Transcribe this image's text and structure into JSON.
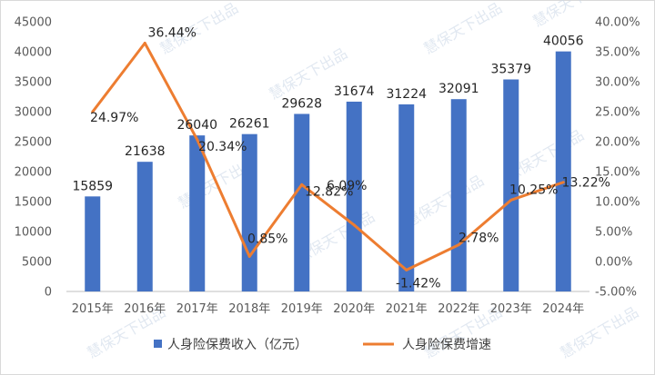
{
  "chart_data": {
    "type": "bar+line",
    "categories": [
      "2015年",
      "2016年",
      "2017年",
      "2018年",
      "2019年",
      "2020年",
      "2021年",
      "2022年",
      "2023年",
      "2024年"
    ],
    "series": [
      {
        "name": "人身险保费收入（亿元）",
        "type": "bar",
        "axis": "left",
        "color": "#4472C4",
        "values": [
          15859,
          21638,
          26040,
          26261,
          29628,
          31674,
          31224,
          32091,
          35379,
          40056
        ],
        "labels": [
          "15859",
          "21638",
          "26040",
          "26261",
          "29628",
          "31674",
          "31224",
          "32091",
          "35379",
          "40056"
        ]
      },
      {
        "name": "人身险保费增速",
        "type": "line",
        "axis": "right",
        "color": "#ED7D31",
        "values": [
          24.97,
          36.44,
          20.34,
          0.85,
          12.82,
          6.09,
          -1.42,
          2.78,
          10.25,
          13.22
        ],
        "labels": [
          "24.97%",
          "36.44%",
          "20.34%",
          "0.85%",
          "12.82%",
          "6.09%",
          "-1.42%",
          "2.78%",
          "10.25%",
          "13.22%"
        ]
      }
    ],
    "y_left": {
      "ylim": [
        0,
        45000
      ],
      "ticks": [
        "0",
        "5000",
        "10000",
        "15000",
        "20000",
        "25000",
        "30000",
        "35000",
        "40000",
        "45000"
      ]
    },
    "y_right": {
      "ylim": [
        -5,
        40
      ],
      "ticks": [
        "-5.00%",
        "0.00%",
        "5.00%",
        "10.00%",
        "15.00%",
        "20.00%",
        "25.00%",
        "30.00%",
        "35.00%",
        "40.00%"
      ]
    },
    "grid": false,
    "legend": "bottom"
  },
  "watermark": "慧保天下出品"
}
